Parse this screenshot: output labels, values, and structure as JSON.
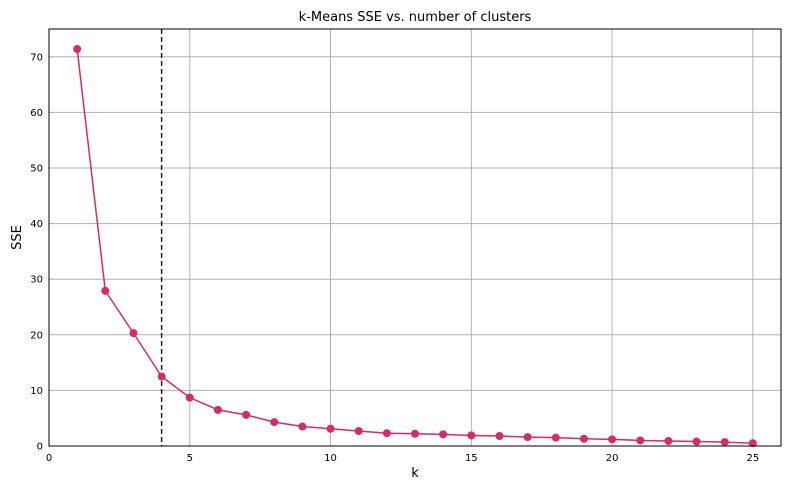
{
  "chart_data": {
    "type": "line",
    "title": "k-Means SSE vs. number of clusters",
    "xlabel": "k",
    "ylabel": "SSE",
    "xlim": [
      0,
      26
    ],
    "ylim": [
      0,
      75
    ],
    "xticks": [
      0,
      5,
      10,
      15,
      20,
      25
    ],
    "yticks": [
      0,
      10,
      20,
      30,
      40,
      50,
      60,
      70
    ],
    "grid": true,
    "series": [
      {
        "color": "#d62a6b",
        "marker": "circle",
        "x": [
          1,
          2,
          3,
          4,
          5,
          6,
          7,
          8,
          9,
          10,
          11,
          12,
          13,
          14,
          15,
          16,
          17,
          18,
          19,
          20,
          21,
          22,
          23,
          24,
          25
        ],
        "values": [
          71.4,
          27.9,
          20.3,
          12.5,
          8.7,
          6.5,
          5.6,
          4.3,
          3.5,
          3.1,
          2.7,
          2.3,
          2.2,
          2.1,
          1.9,
          1.8,
          1.6,
          1.5,
          1.3,
          1.2,
          1.0,
          0.9,
          0.8,
          0.7,
          0.5
        ]
      }
    ],
    "vline": {
      "x": 4,
      "style": "dashed",
      "color": "#222222"
    }
  }
}
